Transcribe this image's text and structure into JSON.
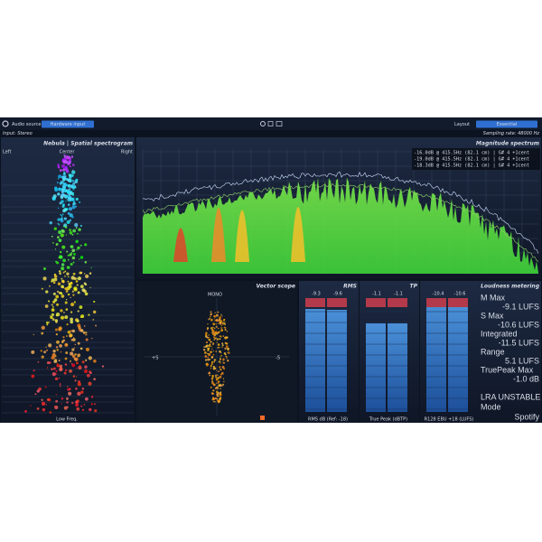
{
  "top_bar": {
    "audio_source_label": "Audio source",
    "audio_source_button": "Hardware input",
    "layout_label": "Layout",
    "layout_button": "Essential",
    "input": "Input: Stereo",
    "sampling_rate": "Sampling rate: 48000 Hz"
  },
  "nebula": {
    "title": "Nebula | Spatial spectrogram",
    "left": "Left",
    "center": "Center",
    "right": "Right",
    "bottom": "Low Freq."
  },
  "spectrum": {
    "title": "Magnitude spectrum",
    "readouts": [
      "-16.0dB @  415.5Hz (82.1 cm) | G# 4  +1cent",
      "-19.0dB @  415.5Hz (82.1 cm) | G# 4  +1cent",
      "-18.3dB @  415.5Hz (82.1 cm) | G# 4  +1cent"
    ]
  },
  "vector_scope": {
    "title": "Vector scope",
    "mono": "MONO",
    "plus_s": "+S",
    "minus_s": "-S"
  },
  "rms": {
    "title": "RMS",
    "left_peak": "-9.3",
    "right_peak": "-9.6",
    "footer": "RMS dB (Ref: -18)"
  },
  "tp": {
    "title": "TP",
    "left_peak": "-1.1",
    "right_peak": "-1.1",
    "footer": "True Peak (dBTP)"
  },
  "loudness_meter": {
    "momentary_peak": "-10.4",
    "short_peak": "-10.6",
    "footer": "R128 EBU +18 (LUFS)"
  },
  "loudness": {
    "title": "Loudness metering",
    "m_max_label": "M Max",
    "m_max": "-9.1 LUFS",
    "s_max_label": "S Max",
    "s_max": "-10.6 LUFS",
    "integrated_label": "Integrated",
    "integrated": "-11.5 LUFS",
    "range_label": "Range",
    "range": "5.1 LUFS",
    "truepeak_label": "TruePeak Max",
    "truepeak": "-1.0 dB",
    "lra": "LRA UNSTABLE",
    "mode_label": "Mode",
    "mode": "Spotify"
  }
}
